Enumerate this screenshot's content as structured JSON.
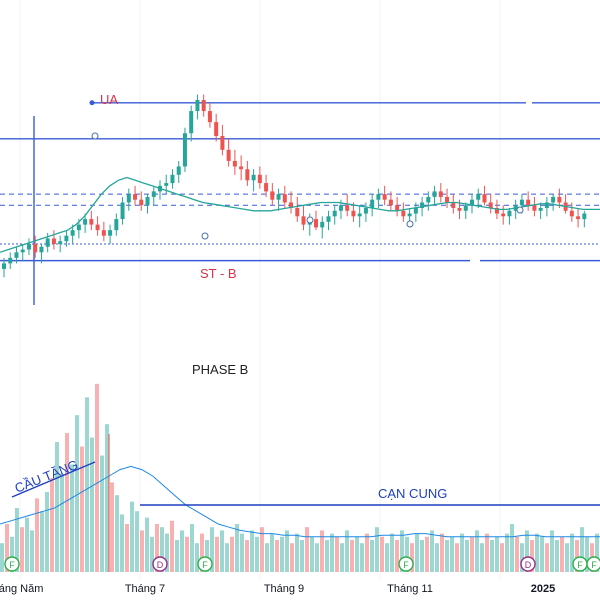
{
  "chart_data": {
    "type": "candlestick",
    "annotations": {
      "ua": "UA",
      "st_b": "ST - B",
      "phase_b": "PHASE B",
      "cau_tang": "CẦU TĂNG",
      "can_cung": "CẠN CUNG"
    },
    "x_ticks": [
      "háng Năm",
      "Tháng 7",
      "Tháng 9",
      "Tháng 11",
      "2025"
    ],
    "event_markers": [
      "F",
      "F",
      "D",
      "F",
      "F",
      "D",
      "F"
    ],
    "price_series": {
      "candles": [
        [
          258,
          266,
          252,
          262
        ],
        [
          262,
          270,
          258,
          266
        ],
        [
          266,
          274,
          262,
          270
        ],
        [
          270,
          276,
          264,
          272
        ],
        [
          272,
          280,
          268,
          276
        ],
        [
          276,
          282,
          266,
          270
        ],
        [
          270,
          276,
          262,
          274
        ],
        [
          274,
          284,
          270,
          280
        ],
        [
          280,
          286,
          272,
          276
        ],
        [
          276,
          282,
          270,
          278
        ],
        [
          278,
          286,
          274,
          282
        ],
        [
          282,
          290,
          276,
          286
        ],
        [
          286,
          294,
          280,
          290
        ],
        [
          290,
          298,
          284,
          294
        ],
        [
          294,
          300,
          286,
          290
        ],
        [
          290,
          296,
          282,
          286
        ],
        [
          286,
          292,
          278,
          282
        ],
        [
          282,
          290,
          276,
          286
        ],
        [
          286,
          298,
          282,
          294
        ],
        [
          294,
          310,
          290,
          306
        ],
        [
          306,
          316,
          300,
          312
        ],
        [
          312,
          318,
          304,
          308
        ],
        [
          308,
          314,
          300,
          304
        ],
        [
          304,
          312,
          298,
          310
        ],
        [
          310,
          318,
          304,
          314
        ],
        [
          314,
          322,
          308,
          318
        ],
        [
          318,
          326,
          312,
          320
        ],
        [
          320,
          330,
          316,
          326
        ],
        [
          326,
          336,
          320,
          332
        ],
        [
          332,
          360,
          328,
          356
        ],
        [
          356,
          376,
          350,
          372
        ],
        [
          372,
          384,
          366,
          380
        ],
        [
          380,
          384,
          368,
          372
        ],
        [
          372,
          378,
          360,
          364
        ],
        [
          364,
          370,
          350,
          354
        ],
        [
          354,
          362,
          340,
          344
        ],
        [
          344,
          352,
          332,
          336
        ],
        [
          336,
          344,
          326,
          332
        ],
        [
          332,
          340,
          322,
          330
        ],
        [
          330,
          336,
          318,
          322
        ],
        [
          322,
          330,
          314,
          326
        ],
        [
          326,
          332,
          316,
          320
        ],
        [
          320,
          326,
          310,
          314
        ],
        [
          314,
          320,
          304,
          308
        ],
        [
          308,
          316,
          300,
          312
        ],
        [
          312,
          318,
          302,
          306
        ],
        [
          306,
          314,
          298,
          302
        ],
        [
          302,
          310,
          292,
          296
        ],
        [
          296,
          304,
          286,
          290
        ],
        [
          290,
          298,
          282,
          294
        ],
        [
          294,
          300,
          286,
          288
        ],
        [
          288,
          296,
          280,
          292
        ],
        [
          292,
          300,
          286,
          296
        ],
        [
          296,
          304,
          290,
          300
        ],
        [
          300,
          308,
          294,
          304
        ],
        [
          304,
          312,
          296,
          300
        ],
        [
          300,
          306,
          292,
          296
        ],
        [
          296,
          304,
          288,
          298
        ],
        [
          298,
          306,
          292,
          302
        ],
        [
          302,
          312,
          296,
          308
        ],
        [
          308,
          316,
          302,
          312
        ],
        [
          312,
          318,
          304,
          308
        ],
        [
          308,
          314,
          300,
          304
        ],
        [
          304,
          310,
          296,
          300
        ],
        [
          300,
          306,
          292,
          296
        ],
        [
          296,
          302,
          288,
          298
        ],
        [
          298,
          306,
          292,
          302
        ],
        [
          302,
          310,
          296,
          306
        ],
        [
          306,
          314,
          300,
          310
        ],
        [
          310,
          318,
          304,
          314
        ],
        [
          314,
          320,
          306,
          310
        ],
        [
          310,
          316,
          302,
          306
        ],
        [
          306,
          312,
          298,
          302
        ],
        [
          302,
          308,
          294,
          300
        ],
        [
          300,
          306,
          294,
          304
        ],
        [
          304,
          312,
          298,
          308
        ],
        [
          308,
          316,
          302,
          312
        ],
        [
          312,
          318,
          304,
          306
        ],
        [
          306,
          312,
          298,
          302
        ],
        [
          302,
          308,
          294,
          298
        ],
        [
          298,
          304,
          290,
          296
        ],
        [
          296,
          302,
          290,
          300
        ],
        [
          300,
          308,
          294,
          304
        ],
        [
          304,
          312,
          298,
          308
        ],
        [
          308,
          314,
          300,
          304
        ],
        [
          304,
          310,
          296,
          300
        ],
        [
          300,
          306,
          294,
          302
        ],
        [
          302,
          310,
          296,
          306
        ],
        [
          306,
          312,
          300,
          310
        ],
        [
          310,
          316,
          302,
          306
        ],
        [
          306,
          312,
          298,
          300
        ],
        [
          300,
          306,
          292,
          296
        ],
        [
          296,
          302,
          288,
          294
        ],
        [
          294,
          300,
          288,
          298
        ]
      ],
      "ma_line": [
        270,
        272,
        274,
        276,
        278,
        280,
        282,
        284,
        286,
        290,
        296,
        304,
        312,
        318,
        322,
        324,
        322,
        320,
        318,
        316,
        314,
        312,
        310,
        308,
        306,
        305,
        304,
        303,
        302,
        301,
        300,
        300,
        300,
        301,
        302,
        303,
        304,
        305,
        306,
        306,
        306,
        305,
        304,
        303,
        302,
        301,
        300,
        300,
        301,
        302,
        303,
        304,
        305,
        306,
        306,
        305,
        304,
        303,
        302,
        301,
        301,
        302,
        303,
        304,
        305,
        305,
        304,
        303,
        302,
        301,
        301,
        301
      ]
    },
    "levels": {
      "ua_top": 378,
      "upper_resistance": 352,
      "dashed_upper": 312,
      "dashed_lower": 304,
      "dotted_support": 276,
      "lower_support": 264
    },
    "volume": {
      "bars": [
        18,
        30,
        22,
        40,
        28,
        34,
        26,
        46,
        38,
        50,
        42,
        58,
        44,
        62,
        48,
        70,
        56,
        78,
        60,
        84,
        52,
        66,
        40,
        48,
        36,
        30,
        44,
        38,
        26,
        34,
        22,
        30,
        28,
        24,
        32,
        20,
        26,
        22,
        30,
        18,
        24,
        20,
        28,
        22,
        26,
        18,
        22,
        30,
        24,
        20,
        26,
        22,
        28,
        18,
        24,
        20,
        22,
        26,
        18,
        24,
        20,
        28,
        22,
        18,
        26,
        20,
        24,
        22,
        18,
        26,
        20,
        22,
        18,
        24,
        20,
        28,
        22,
        18,
        24,
        20,
        26,
        22,
        18,
        24,
        20,
        22,
        26,
        18,
        24,
        20,
        22,
        18,
        24,
        20,
        22,
        26,
        18,
        24,
        20,
        22,
        18,
        24,
        30,
        22,
        18,
        26,
        20,
        24,
        22,
        18,
        26,
        20,
        22,
        18,
        24,
        20,
        28,
        22,
        18,
        24
      ],
      "ma_line": [
        30,
        32,
        34,
        36,
        38,
        40,
        44,
        48,
        52,
        56,
        60,
        64,
        66,
        64,
        60,
        54,
        48,
        42,
        38,
        34,
        30,
        28,
        26,
        25,
        24,
        24,
        23,
        23,
        22,
        22,
        22,
        22,
        22,
        22,
        22,
        23,
        23,
        23,
        24,
        24,
        23,
        22,
        22,
        22,
        22,
        22,
        22,
        22,
        23,
        23,
        22,
        22,
        22,
        22,
        22,
        22
      ]
    }
  }
}
